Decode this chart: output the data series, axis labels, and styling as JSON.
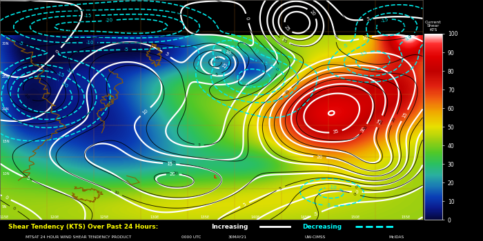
{
  "title_bottom": "Shear Tendency (KTS) Over Past 24 Hours:",
  "increasing_label": "Increasing",
  "decreasing_label": "Decreasing",
  "footer_left": "MTSAT 24 HOUR WIND SHEAR TENDENCY PRODUCT",
  "footer_center": "0000 UTC",
  "footer_date": "30MAY21",
  "footer_right": "UW-CIMSS",
  "footer_logo": "McIDAS",
  "colorbar_title": "Current\nShear\nKTS",
  "colorbar_ticks": [
    0,
    10,
    20,
    30,
    40,
    50,
    60,
    70,
    80,
    90,
    100
  ],
  "bg_color": "#000000",
  "figsize": [
    7.0,
    3.5
  ],
  "dpi": 100
}
